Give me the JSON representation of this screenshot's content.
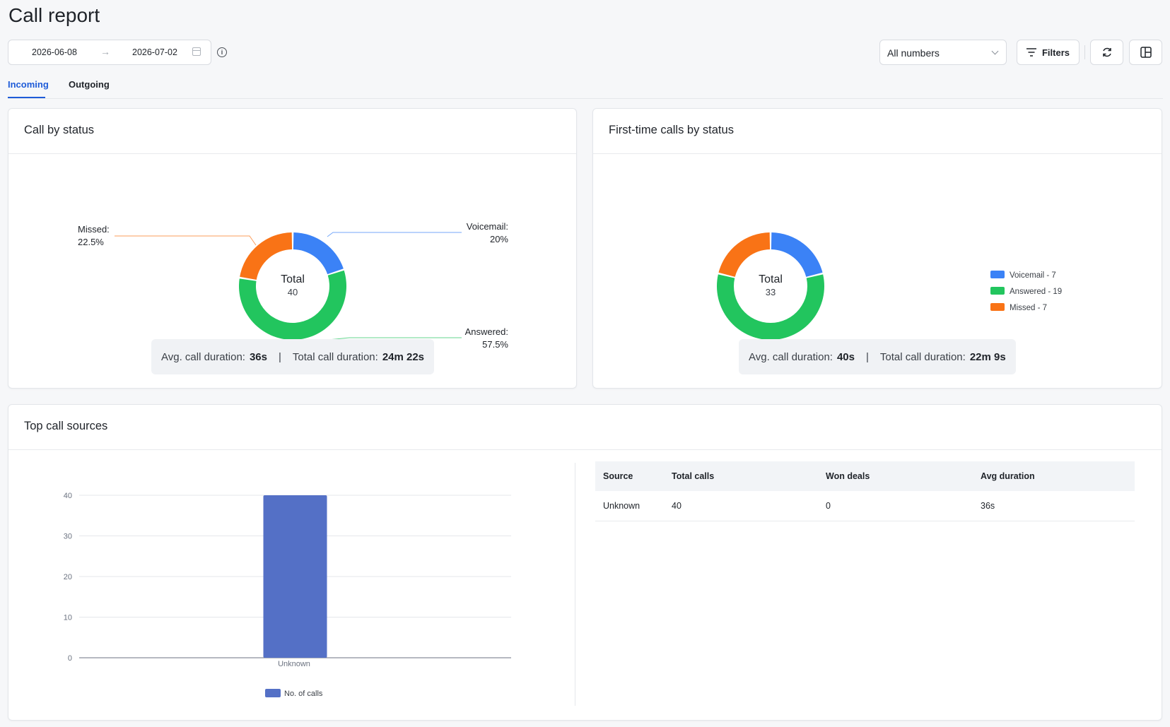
{
  "page": {
    "title": "Call report"
  },
  "toolbar": {
    "date_from": "2026-06-08",
    "date_to": "2026-07-02",
    "number_select": "All numbers",
    "filters_label": "Filters"
  },
  "tabs": [
    {
      "label": "Incoming",
      "active": true
    },
    {
      "label": "Outgoing",
      "active": false
    }
  ],
  "colors": {
    "voicemail": "#3b82f6",
    "answered": "#22c55e",
    "missed": "#f97316",
    "bar": "#5470c6",
    "accent": "#1e5bd8"
  },
  "call_by_status": {
    "title": "Call by status",
    "center_label": "Total",
    "center_value": "40",
    "labels": {
      "missed_name": "Missed:",
      "missed_pct": "22.5%",
      "voicemail_name": "Voicemail:",
      "voicemail_pct": "20%",
      "answered_name": "Answered:",
      "answered_pct": "57.5%"
    },
    "summary": {
      "avg_label": "Avg. call duration:",
      "avg_value": "36s",
      "total_label": "Total call duration:",
      "total_value": "24m 22s"
    }
  },
  "first_time_calls": {
    "title": "First-time calls by status",
    "center_label": "Total",
    "center_value": "33",
    "legend": [
      "Voicemail - 7",
      "Answered - 19",
      "Missed - 7"
    ],
    "summary": {
      "avg_label": "Avg. call duration:",
      "avg_value": "40s",
      "total_label": "Total call duration:",
      "total_value": "22m 9s"
    }
  },
  "top_sources": {
    "title": "Top call sources",
    "table": {
      "headers": [
        "Source",
        "Total calls",
        "Won deals",
        "Avg duration"
      ],
      "rows": [
        [
          "Unknown",
          "40",
          "0",
          "36s"
        ]
      ]
    }
  },
  "chart_data": [
    {
      "type": "pie",
      "title": "Call by status",
      "center_text": "Total 40",
      "slices": [
        {
          "name": "Voicemail",
          "value": 8,
          "percent": 20
        },
        {
          "name": "Answered",
          "value": 23,
          "percent": 57.5
        },
        {
          "name": "Missed",
          "value": 9,
          "percent": 22.5
        }
      ],
      "legend": "none"
    },
    {
      "type": "pie",
      "title": "First-time calls by status",
      "center_text": "Total 33",
      "slices": [
        {
          "name": "Voicemail",
          "value": 7
        },
        {
          "name": "Answered",
          "value": 19
        },
        {
          "name": "Missed",
          "value": 7
        }
      ],
      "legend": "right"
    },
    {
      "type": "bar",
      "title": "Top call sources",
      "categories": [
        "Unknown"
      ],
      "series": [
        {
          "name": "No. of calls",
          "values": [
            40
          ]
        }
      ],
      "yticks": [
        "0",
        "10",
        "20",
        "30",
        "40"
      ],
      "ylim": [
        0,
        40
      ],
      "grid": true,
      "legend": "bottom"
    }
  ]
}
